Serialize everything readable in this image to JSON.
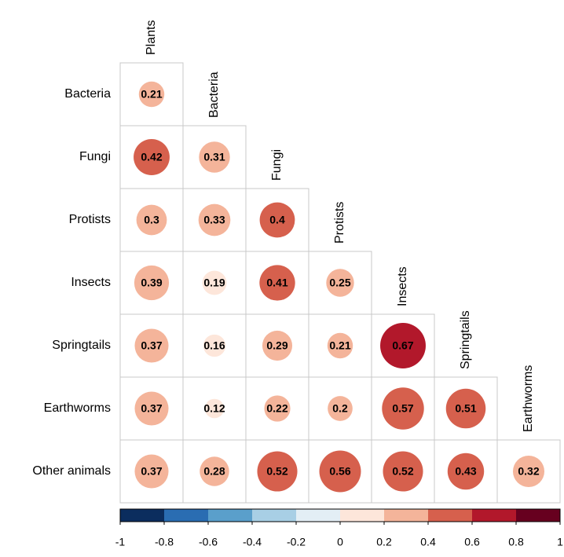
{
  "chart_data": {
    "type": "correlation",
    "rows": [
      "Bacteria",
      "Fungi",
      "Protists",
      "Insects",
      "Springtails",
      "Earthworms",
      "Other animals"
    ],
    "columns": [
      "Plants",
      "Bacteria",
      "Fungi",
      "Protists",
      "Insects",
      "Springtails",
      "Earthworms"
    ],
    "values": [
      [
        0.21
      ],
      [
        0.42,
        0.31
      ],
      [
        0.3,
        0.33,
        0.4
      ],
      [
        0.39,
        0.19,
        0.41,
        0.25
      ],
      [
        0.37,
        0.16,
        0.29,
        0.21,
        0.67
      ],
      [
        0.37,
        0.12,
        0.22,
        0.2,
        0.57,
        0.51
      ],
      [
        0.37,
        0.28,
        0.52,
        0.56,
        0.52,
        0.43,
        0.32
      ]
    ],
    "colorbar": {
      "lim": [
        -1,
        1
      ],
      "ticks": [
        -1,
        -0.8,
        -0.6,
        -0.4,
        -0.2,
        0,
        0.2,
        0.4,
        0.6,
        0.8,
        1
      ],
      "colors": [
        "#0b2d5e",
        "#2a6db2",
        "#5a9fcb",
        "#a8cfe5",
        "#e3eef5",
        "#fde6da",
        "#f4b49a",
        "#d6604d",
        "#b2182b",
        "#67001f"
      ]
    }
  }
}
